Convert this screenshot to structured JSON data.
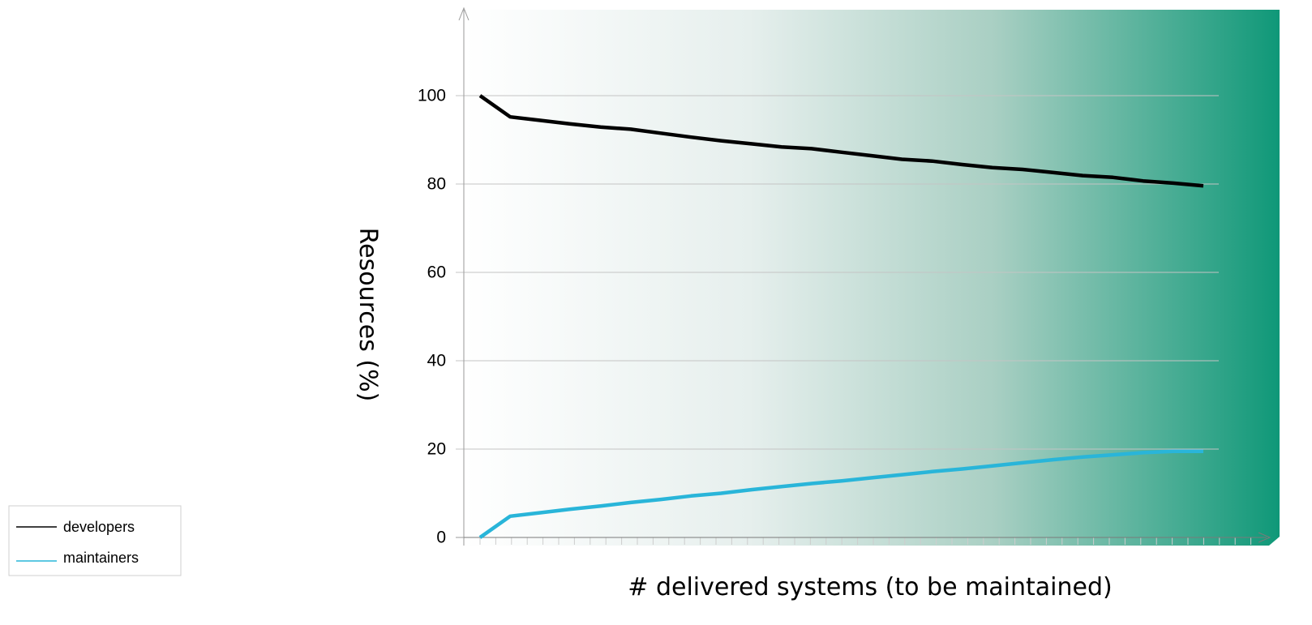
{
  "chart_data": {
    "type": "line",
    "xlabel": "# delivered systems (to be maintained)",
    "ylabel": "Resources (%)",
    "ylim": [
      0,
      120
    ],
    "yticks": [
      0,
      20,
      40,
      60,
      80,
      100
    ],
    "grid": "horizontal",
    "legend_position": "bottom-left",
    "background": "gradient white to teal (left to right)",
    "colors": {
      "gradient_start": "#ffffff",
      "gradient_end": "#0f9878"
    },
    "x": [
      0,
      1,
      2,
      3,
      4,
      5,
      6,
      7,
      8,
      9,
      10,
      11,
      12,
      13,
      14,
      15,
      16,
      17,
      18,
      19,
      20,
      21,
      22,
      23,
      24
    ],
    "series": [
      {
        "name": "developers",
        "color": "#000000",
        "values": [
          100,
          95.2,
          94.4,
          93.6,
          92.9,
          92.4,
          91.5,
          90.6,
          89.8,
          89.1,
          88.4,
          88.0,
          87.2,
          86.4,
          85.6,
          85.2,
          84.4,
          83.7,
          83.3,
          82.6,
          81.9,
          81.5,
          80.7,
          80.2,
          79.6
        ]
      },
      {
        "name": "maintainers",
        "color": "#29b5d9",
        "values": [
          0,
          4.8,
          5.6,
          6.4,
          7.1,
          7.9,
          8.6,
          9.4,
          10.0,
          10.8,
          11.5,
          12.2,
          12.8,
          13.5,
          14.2,
          14.9,
          15.5,
          16.2,
          16.9,
          17.6,
          18.2,
          18.7,
          19.2,
          19.5,
          19.5
        ]
      }
    ]
  }
}
